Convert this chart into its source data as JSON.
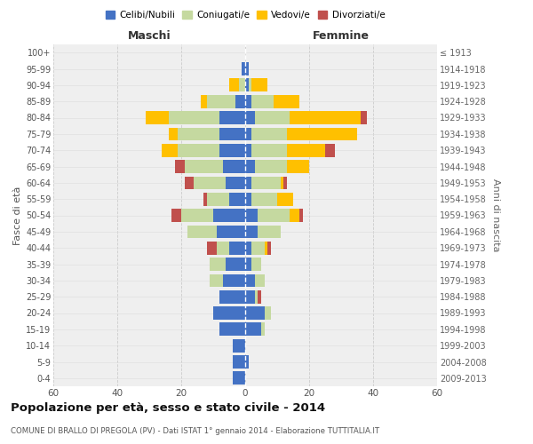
{
  "age_groups": [
    "0-4",
    "5-9",
    "10-14",
    "15-19",
    "20-24",
    "25-29",
    "30-34",
    "35-39",
    "40-44",
    "45-49",
    "50-54",
    "55-59",
    "60-64",
    "65-69",
    "70-74",
    "75-79",
    "80-84",
    "85-89",
    "90-94",
    "95-99",
    "100+"
  ],
  "birth_years": [
    "2009-2013",
    "2004-2008",
    "1999-2003",
    "1994-1998",
    "1989-1993",
    "1984-1988",
    "1979-1983",
    "1974-1978",
    "1969-1973",
    "1964-1968",
    "1959-1963",
    "1954-1958",
    "1949-1953",
    "1944-1948",
    "1939-1943",
    "1934-1938",
    "1929-1933",
    "1924-1928",
    "1919-1923",
    "1914-1918",
    "≤ 1913"
  ],
  "males": {
    "celibi": [
      4,
      4,
      4,
      8,
      10,
      8,
      7,
      6,
      5,
      9,
      10,
      5,
      6,
      7,
      8,
      8,
      8,
      3,
      0,
      1,
      0
    ],
    "coniugati": [
      0,
      0,
      0,
      0,
      0,
      0,
      4,
      5,
      4,
      9,
      10,
      7,
      10,
      12,
      13,
      13,
      16,
      9,
      2,
      0,
      0
    ],
    "vedovi": [
      0,
      0,
      0,
      0,
      0,
      0,
      0,
      0,
      0,
      0,
      0,
      0,
      0,
      0,
      5,
      3,
      7,
      2,
      3,
      0,
      0
    ],
    "divorziati": [
      0,
      0,
      0,
      0,
      0,
      0,
      0,
      0,
      3,
      0,
      3,
      1,
      3,
      3,
      0,
      0,
      0,
      0,
      0,
      0,
      0
    ]
  },
  "females": {
    "nubili": [
      0,
      1,
      0,
      5,
      6,
      3,
      3,
      2,
      2,
      4,
      4,
      2,
      2,
      3,
      2,
      2,
      3,
      2,
      1,
      1,
      0
    ],
    "coniugate": [
      0,
      0,
      0,
      1,
      2,
      1,
      3,
      3,
      4,
      7,
      10,
      8,
      9,
      10,
      11,
      11,
      11,
      7,
      1,
      0,
      0
    ],
    "vedove": [
      0,
      0,
      0,
      0,
      0,
      0,
      0,
      0,
      1,
      0,
      3,
      5,
      1,
      7,
      12,
      22,
      22,
      8,
      5,
      0,
      0
    ],
    "divorziate": [
      0,
      0,
      0,
      0,
      0,
      1,
      0,
      0,
      1,
      0,
      1,
      0,
      1,
      0,
      3,
      0,
      2,
      0,
      0,
      0,
      0
    ]
  },
  "color_celibi": "#4472c4",
  "color_coniugati": "#c5d9a0",
  "color_vedovi": "#ffc000",
  "color_divorziati": "#c0504d",
  "title": "Popolazione per età, sesso e stato civile - 2014",
  "subtitle": "COMUNE DI BRALLO DI PREGOLA (PV) - Dati ISTAT 1° gennaio 2014 - Elaborazione TUTTITALIA.IT",
  "xlabel_left": "Maschi",
  "xlabel_right": "Femmine",
  "ylabel_left": "Fasce di età",
  "ylabel_right": "Anni di nascita",
  "xlim": 60,
  "legend_labels": [
    "Celibi/Nubili",
    "Coniugati/e",
    "Vedovi/e",
    "Divorziati/e"
  ],
  "bg_color": "#ffffff",
  "grid_color": "#cccccc"
}
